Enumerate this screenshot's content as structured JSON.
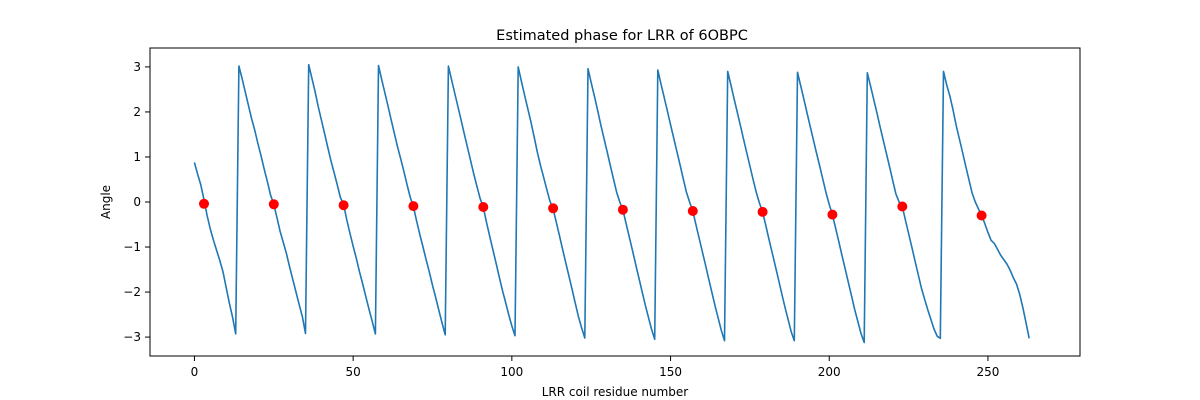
{
  "chart_data": {
    "type": "line",
    "title": "Estimated phase for LRR of 6OBPC",
    "xlabel": "LRR coil residue number",
    "ylabel": "Angle",
    "xlim": [
      -14,
      279
    ],
    "ylim": [
      -3.42,
      3.42
    ],
    "xticks": [
      0,
      50,
      100,
      150,
      200,
      250
    ],
    "yticks": [
      -3,
      -2,
      -1,
      0,
      1,
      2,
      3
    ],
    "grid": false,
    "line_color": "#1f77b4",
    "marker_color": "#ff0000",
    "series": [
      {
        "values": [
          [
            0,
            0.88
          ],
          [
            1,
            0.62
          ],
          [
            2,
            0.38
          ],
          [
            3,
            0.05
          ],
          [
            4,
            -0.3
          ],
          [
            5,
            -0.6
          ],
          [
            6,
            -0.85
          ],
          [
            7,
            -1.08
          ],
          [
            8,
            -1.3
          ],
          [
            9,
            -1.55
          ],
          [
            10,
            -1.9
          ],
          [
            11,
            -2.25
          ],
          [
            12,
            -2.55
          ],
          [
            13,
            -2.93
          ],
          [
            14,
            3.02
          ],
          [
            15,
            2.75
          ],
          [
            16,
            2.45
          ],
          [
            17,
            2.15
          ],
          [
            18,
            1.85
          ],
          [
            19,
            1.6
          ],
          [
            20,
            1.3
          ],
          [
            21,
            1.02
          ],
          [
            22,
            0.72
          ],
          [
            23,
            0.45
          ],
          [
            24,
            0.15
          ],
          [
            25,
            -0.05
          ],
          [
            26,
            -0.35
          ],
          [
            27,
            -0.65
          ],
          [
            28,
            -0.9
          ],
          [
            29,
            -1.15
          ],
          [
            30,
            -1.45
          ],
          [
            31,
            -1.72
          ],
          [
            32,
            -2.0
          ],
          [
            33,
            -2.28
          ],
          [
            34,
            -2.55
          ],
          [
            35,
            -2.92
          ],
          [
            36,
            3.05
          ],
          [
            37,
            2.75
          ],
          [
            38,
            2.45
          ],
          [
            39,
            2.12
          ],
          [
            40,
            1.82
          ],
          [
            41,
            1.52
          ],
          [
            42,
            1.22
          ],
          [
            43,
            0.92
          ],
          [
            44,
            0.65
          ],
          [
            45,
            0.38
          ],
          [
            46,
            0.1
          ],
          [
            47,
            -0.05
          ],
          [
            48,
            -0.4
          ],
          [
            49,
            -0.7
          ],
          [
            50,
            -0.98
          ],
          [
            51,
            -1.25
          ],
          [
            52,
            -1.55
          ],
          [
            53,
            -1.82
          ],
          [
            54,
            -2.1
          ],
          [
            55,
            -2.38
          ],
          [
            56,
            -2.65
          ],
          [
            57,
            -2.93
          ],
          [
            58,
            3.03
          ],
          [
            59,
            2.72
          ],
          [
            60,
            2.42
          ],
          [
            61,
            2.12
          ],
          [
            62,
            1.82
          ],
          [
            63,
            1.52
          ],
          [
            64,
            1.22
          ],
          [
            65,
            0.95
          ],
          [
            66,
            0.68
          ],
          [
            67,
            0.38
          ],
          [
            68,
            0.1
          ],
          [
            69,
            -0.1
          ],
          [
            70,
            -0.42
          ],
          [
            71,
            -0.72
          ],
          [
            72,
            -1.0
          ],
          [
            73,
            -1.28
          ],
          [
            74,
            -1.55
          ],
          [
            75,
            -1.85
          ],
          [
            76,
            -2.12
          ],
          [
            77,
            -2.4
          ],
          [
            78,
            -2.68
          ],
          [
            79,
            -2.95
          ],
          [
            80,
            3.02
          ],
          [
            81,
            2.72
          ],
          [
            82,
            2.42
          ],
          [
            83,
            2.12
          ],
          [
            84,
            1.82
          ],
          [
            85,
            1.52
          ],
          [
            86,
            1.22
          ],
          [
            87,
            0.92
          ],
          [
            88,
            0.62
          ],
          [
            89,
            0.35
          ],
          [
            90,
            0.08
          ],
          [
            91,
            -0.12
          ],
          [
            92,
            -0.45
          ],
          [
            93,
            -0.75
          ],
          [
            94,
            -1.05
          ],
          [
            95,
            -1.35
          ],
          [
            96,
            -1.65
          ],
          [
            97,
            -1.95
          ],
          [
            98,
            -2.22
          ],
          [
            99,
            -2.5
          ],
          [
            100,
            -2.75
          ],
          [
            101,
            -2.97
          ],
          [
            102,
            3.0
          ],
          [
            103,
            2.68
          ],
          [
            104,
            2.38
          ],
          [
            105,
            2.08
          ],
          [
            106,
            1.78
          ],
          [
            107,
            1.45
          ],
          [
            108,
            1.12
          ],
          [
            109,
            0.82
          ],
          [
            110,
            0.55
          ],
          [
            111,
            0.28
          ],
          [
            112,
            0.02
          ],
          [
            113,
            -0.15
          ],
          [
            114,
            -0.45
          ],
          [
            115,
            -0.75
          ],
          [
            116,
            -1.05
          ],
          [
            117,
            -1.35
          ],
          [
            118,
            -1.65
          ],
          [
            119,
            -1.95
          ],
          [
            120,
            -2.25
          ],
          [
            121,
            -2.55
          ],
          [
            122,
            -2.8
          ],
          [
            123,
            -3.02
          ],
          [
            124,
            2.96
          ],
          [
            125,
            2.65
          ],
          [
            126,
            2.35
          ],
          [
            127,
            2.05
          ],
          [
            128,
            1.72
          ],
          [
            129,
            1.42
          ],
          [
            130,
            1.12
          ],
          [
            131,
            0.82
          ],
          [
            132,
            0.52
          ],
          [
            133,
            0.22
          ],
          [
            134,
            0.0
          ],
          [
            135,
            -0.18
          ],
          [
            136,
            -0.48
          ],
          [
            137,
            -0.78
          ],
          [
            138,
            -1.08
          ],
          [
            139,
            -1.38
          ],
          [
            140,
            -1.68
          ],
          [
            141,
            -1.98
          ],
          [
            142,
            -2.28
          ],
          [
            143,
            -2.55
          ],
          [
            144,
            -2.82
          ],
          [
            145,
            -3.05
          ],
          [
            146,
            2.93
          ],
          [
            147,
            2.62
          ],
          [
            148,
            2.32
          ],
          [
            149,
            2.02
          ],
          [
            150,
            1.72
          ],
          [
            151,
            1.42
          ],
          [
            152,
            1.12
          ],
          [
            153,
            0.82
          ],
          [
            154,
            0.52
          ],
          [
            155,
            0.22
          ],
          [
            156,
            0.0
          ],
          [
            157,
            -0.2
          ],
          [
            158,
            -0.5
          ],
          [
            159,
            -0.8
          ],
          [
            160,
            -1.1
          ],
          [
            161,
            -1.4
          ],
          [
            162,
            -1.7
          ],
          [
            163,
            -2.0
          ],
          [
            164,
            -2.3
          ],
          [
            165,
            -2.58
          ],
          [
            166,
            -2.85
          ],
          [
            167,
            -3.08
          ],
          [
            168,
            2.9
          ],
          [
            169,
            2.6
          ],
          [
            170,
            2.3
          ],
          [
            171,
            2.0
          ],
          [
            172,
            1.7
          ],
          [
            173,
            1.4
          ],
          [
            174,
            1.1
          ],
          [
            175,
            0.8
          ],
          [
            176,
            0.5
          ],
          [
            177,
            0.22
          ],
          [
            178,
            -0.02
          ],
          [
            179,
            -0.22
          ],
          [
            180,
            -0.52
          ],
          [
            181,
            -0.82
          ],
          [
            182,
            -1.12
          ],
          [
            183,
            -1.42
          ],
          [
            184,
            -1.72
          ],
          [
            185,
            -2.02
          ],
          [
            186,
            -2.32
          ],
          [
            187,
            -2.6
          ],
          [
            188,
            -2.88
          ],
          [
            189,
            -3.08
          ],
          [
            190,
            2.88
          ],
          [
            191,
            2.58
          ],
          [
            192,
            2.28
          ],
          [
            193,
            1.98
          ],
          [
            194,
            1.68
          ],
          [
            195,
            1.38
          ],
          [
            196,
            1.08
          ],
          [
            197,
            0.8
          ],
          [
            198,
            0.5
          ],
          [
            199,
            0.2
          ],
          [
            200,
            -0.05
          ],
          [
            201,
            -0.28
          ],
          [
            202,
            -0.58
          ],
          [
            203,
            -0.88
          ],
          [
            204,
            -1.18
          ],
          [
            205,
            -1.48
          ],
          [
            206,
            -1.78
          ],
          [
            207,
            -2.08
          ],
          [
            208,
            -2.38
          ],
          [
            209,
            -2.65
          ],
          [
            210,
            -2.92
          ],
          [
            211,
            -3.12
          ],
          [
            212,
            2.87
          ],
          [
            213,
            2.58
          ],
          [
            214,
            2.28
          ],
          [
            215,
            1.98
          ],
          [
            216,
            1.68
          ],
          [
            217,
            1.38
          ],
          [
            218,
            1.08
          ],
          [
            219,
            0.78
          ],
          [
            220,
            0.48
          ],
          [
            221,
            0.18
          ],
          [
            222,
            0.0
          ],
          [
            223,
            -0.1
          ],
          [
            224,
            -0.4
          ],
          [
            225,
            -0.7
          ],
          [
            226,
            -1.0
          ],
          [
            227,
            -1.3
          ],
          [
            228,
            -1.6
          ],
          [
            229,
            -1.9
          ],
          [
            230,
            -2.15
          ],
          [
            231,
            -2.38
          ],
          [
            232,
            -2.6
          ],
          [
            233,
            -2.82
          ],
          [
            234,
            -2.98
          ],
          [
            235,
            -3.03
          ],
          [
            236,
            2.9
          ],
          [
            237,
            2.6
          ],
          [
            238,
            2.35
          ],
          [
            239,
            2.05
          ],
          [
            240,
            1.7
          ],
          [
            241,
            1.4
          ],
          [
            242,
            1.1
          ],
          [
            243,
            0.8
          ],
          [
            244,
            0.5
          ],
          [
            245,
            0.2
          ],
          [
            246,
            0.0
          ],
          [
            247,
            -0.15
          ],
          [
            248,
            -0.3
          ],
          [
            249,
            -0.48
          ],
          [
            250,
            -0.68
          ],
          [
            251,
            -0.85
          ],
          [
            252,
            -0.92
          ],
          [
            253,
            -1.05
          ],
          [
            254,
            -1.18
          ],
          [
            255,
            -1.28
          ],
          [
            256,
            -1.38
          ],
          [
            257,
            -1.52
          ],
          [
            258,
            -1.68
          ],
          [
            259,
            -1.82
          ],
          [
            260,
            -2.05
          ],
          [
            261,
            -2.35
          ],
          [
            262,
            -2.68
          ],
          [
            263,
            -3.03
          ]
        ]
      },
      {
        "type": "scatter",
        "values": [
          [
            3,
            -0.04
          ],
          [
            25,
            -0.05
          ],
          [
            47,
            -0.07
          ],
          [
            69,
            -0.09
          ],
          [
            91,
            -0.11
          ],
          [
            113,
            -0.14
          ],
          [
            135,
            -0.17
          ],
          [
            157,
            -0.2
          ],
          [
            179,
            -0.22
          ],
          [
            201,
            -0.28
          ],
          [
            223,
            -0.1
          ],
          [
            248,
            -0.3
          ]
        ]
      }
    ]
  }
}
